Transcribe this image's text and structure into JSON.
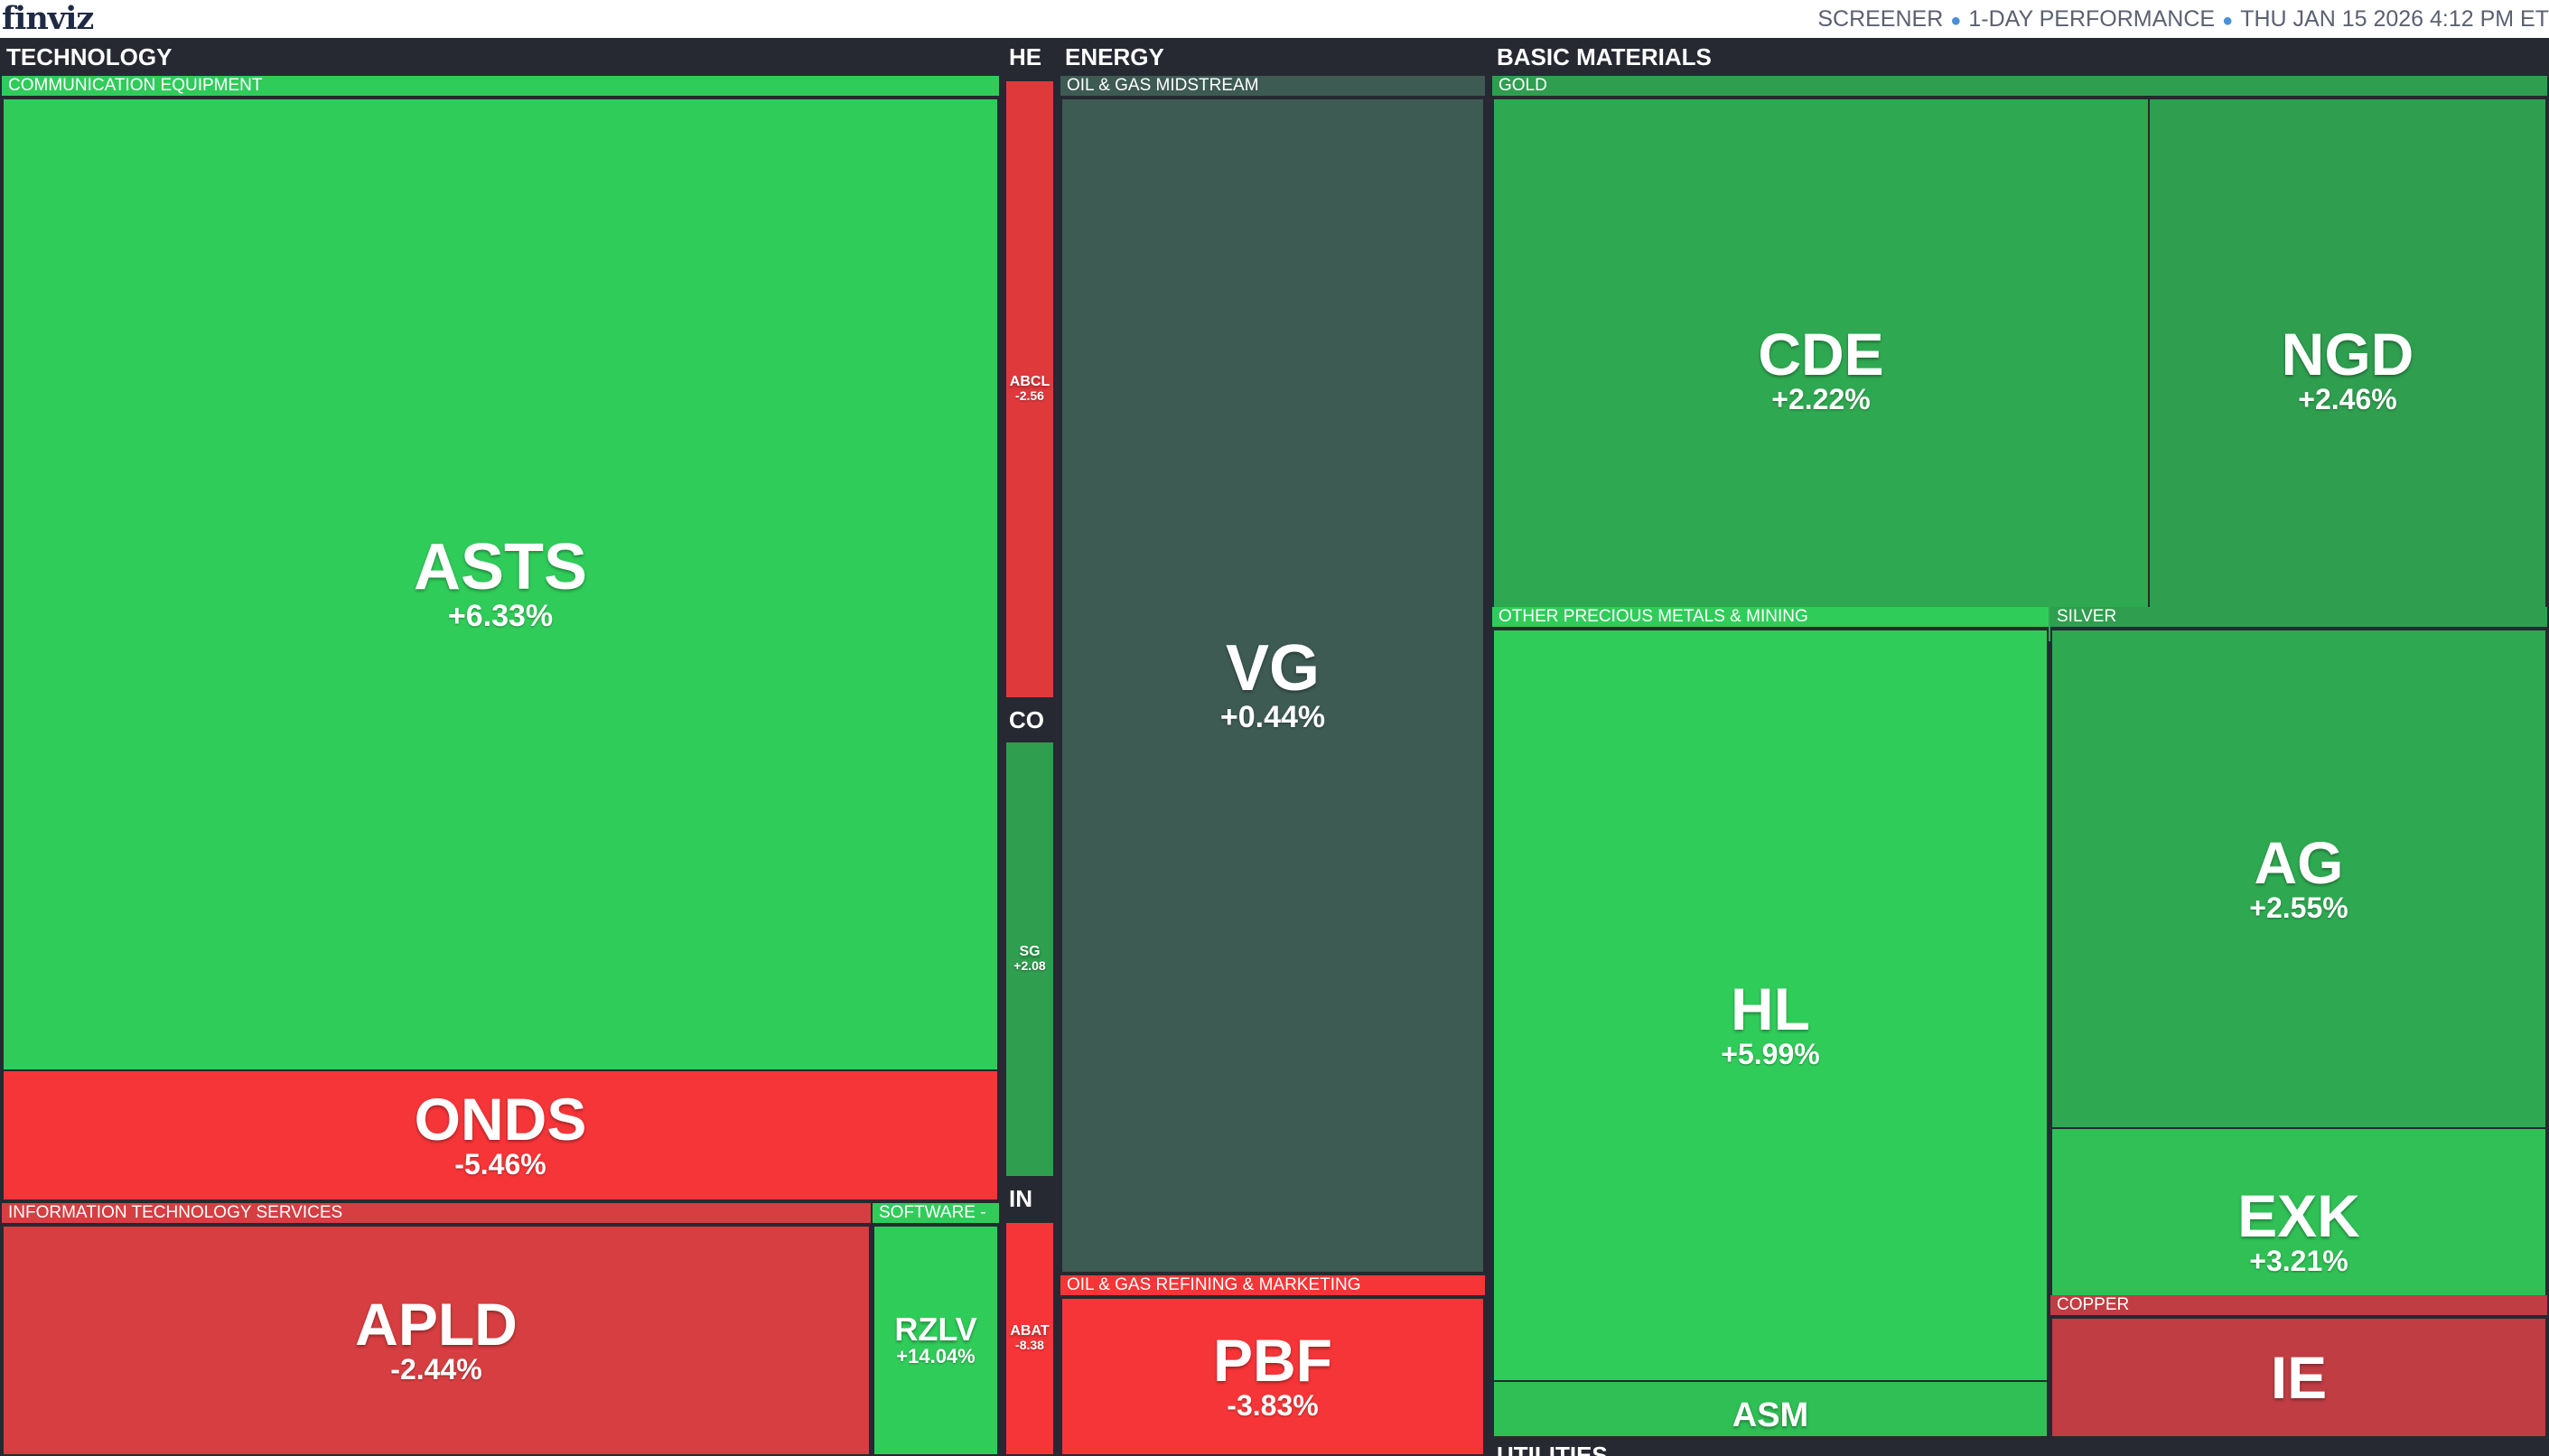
{
  "app": {
    "logo": "finviz",
    "nav": [
      "SCREENER",
      "1-DAY PERFORMANCE",
      "THU JAN 15 2026 4:12 PM ET"
    ]
  },
  "colors": {
    "green_strong": "#30cc5a",
    "green_mid": "#2f9e4f",
    "neutral": "#3d5a53",
    "red_strong": "#f63538",
    "red_mid": "#d63e41",
    "red_dark": "#bf3d43",
    "background": "#262931"
  },
  "sectors": {
    "technology": "TECHNOLOGY",
    "healthcare": "HE",
    "consumer": "CO",
    "industrials": "IN",
    "energy": "ENERGY",
    "basic_materials": "BASIC MATERIALS",
    "utilities": "UTILITIES"
  },
  "industries": {
    "comm_equipment": "COMMUNICATION EQUIPMENT",
    "it_services": "INFORMATION TECHNOLOGY SERVICES",
    "software": "SOFTWARE -",
    "oil_gas_midstream": "OIL & GAS MIDSTREAM",
    "oil_gas_refining": "OIL & GAS REFINING & MARKETING",
    "gold": "GOLD",
    "other_precious": "OTHER PRECIOUS METALS & MINING",
    "silver": "SILVER",
    "copper": "COPPER"
  },
  "tiles": {
    "asts": {
      "ticker": "ASTS",
      "change": "+6.33%"
    },
    "onds": {
      "ticker": "ONDS",
      "change": "-5.46%"
    },
    "apld": {
      "ticker": "APLD",
      "change": "-2.44%"
    },
    "rzlv": {
      "ticker": "RZLV",
      "change": "+14.04%"
    },
    "abcl": {
      "ticker": "ABCL",
      "change": "-2.56"
    },
    "sg": {
      "ticker": "SG",
      "change": "+2.08"
    },
    "abat": {
      "ticker": "ABAT",
      "change": "-8.38"
    },
    "vg": {
      "ticker": "VG",
      "change": "+0.44%"
    },
    "pbf": {
      "ticker": "PBF",
      "change": "-3.83%"
    },
    "cde": {
      "ticker": "CDE",
      "change": "+2.22%"
    },
    "ngd": {
      "ticker": "NGD",
      "change": "+2.46%"
    },
    "hl": {
      "ticker": "HL",
      "change": "+5.99%"
    },
    "asm": {
      "ticker": "ASM",
      "change": ""
    },
    "ag": {
      "ticker": "AG",
      "change": "+2.55%"
    },
    "exk": {
      "ticker": "EXK",
      "change": "+3.21%"
    },
    "ie": {
      "ticker": "IE",
      "change": ""
    }
  }
}
